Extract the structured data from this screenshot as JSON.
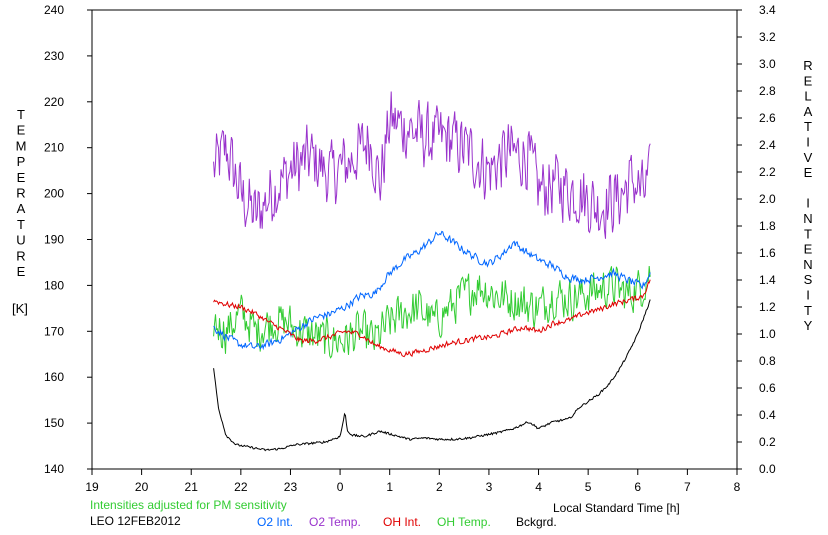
{
  "chart_data": {
    "type": "line",
    "left_axis_title_letters": [
      "T",
      "E",
      "M",
      "P",
      "E",
      "R",
      "A",
      "T",
      "U",
      "R",
      "E"
    ],
    "left_axis_unit": "[K]",
    "right_axis_title_letters": [
      "R",
      "E",
      "L",
      "A",
      "T",
      "I",
      "V",
      "E",
      "",
      "I",
      "N",
      "T",
      "E",
      "N",
      "S",
      "I",
      "T",
      "Y"
    ],
    "xlabel": "Local Standard Time [h]",
    "note": "Intensities adjusted for PM sensitivity",
    "station_label": "LEO 12FEB2012",
    "x_tick_labels": [
      "19",
      "20",
      "21",
      "22",
      "23",
      "0",
      "1",
      "2",
      "3",
      "4",
      "5",
      "6",
      "7",
      "8"
    ],
    "xlim": [
      19,
      32
    ],
    "ylim_left": [
      140,
      240
    ],
    "ylim_right": [
      0.0,
      3.4
    ],
    "y_left_ticks": [
      140,
      150,
      160,
      170,
      180,
      190,
      200,
      210,
      220,
      230,
      240
    ],
    "y_right_ticks": [
      "0.0",
      "0.2",
      "0.4",
      "0.6",
      "0.8",
      "1.0",
      "1.2",
      "1.4",
      "1.6",
      "1.8",
      "2.0",
      "2.2",
      "2.4",
      "2.6",
      "2.8",
      "3.0",
      "3.2",
      "3.4"
    ],
    "grid": false,
    "legend_placement": "bottom",
    "series": [
      {
        "name": "O2 Int.",
        "axis": "right",
        "color": "#0066ff",
        "noise": 0.035,
        "x": [
          21.45,
          21.7,
          22.0,
          22.3,
          22.6,
          22.9,
          23.2,
          23.5,
          23.8,
          24.1,
          24.4,
          24.7,
          25.0,
          25.3,
          25.6,
          25.8,
          26.0,
          26.2,
          26.5,
          26.8,
          27.0,
          27.3,
          27.5,
          27.7,
          28.0,
          28.3,
          28.6,
          28.9,
          29.2,
          29.5,
          29.8,
          30.1,
          30.25
        ],
        "y": [
          1.05,
          0.98,
          0.92,
          0.9,
          0.93,
          0.98,
          1.05,
          1.12,
          1.15,
          1.2,
          1.28,
          1.3,
          1.45,
          1.55,
          1.62,
          1.68,
          1.75,
          1.7,
          1.62,
          1.55,
          1.52,
          1.6,
          1.68,
          1.62,
          1.55,
          1.5,
          1.42,
          1.4,
          1.42,
          1.45,
          1.4,
          1.35,
          1.45
        ]
      },
      {
        "name": "O2 Temp.",
        "axis": "left",
        "color": "#9933cc",
        "noise": 8.5,
        "x": [
          21.45,
          21.7,
          22.0,
          22.3,
          22.6,
          23.0,
          23.4,
          23.8,
          24.2,
          24.6,
          24.8,
          25.0,
          25.4,
          25.8,
          26.2,
          26.6,
          27.0,
          27.4,
          27.8,
          28.0,
          28.4,
          28.8,
          29.2,
          29.6,
          29.9,
          30.1,
          30.25
        ],
        "y": [
          205,
          210,
          200,
          195,
          200,
          205,
          208,
          204,
          207,
          212,
          202,
          216,
          214,
          212,
          212,
          209,
          205,
          209,
          208,
          201,
          202,
          200,
          197,
          199,
          203,
          200,
          203
        ]
      },
      {
        "name": "OH Int.",
        "axis": "right",
        "color": "#e00000",
        "noise": 0.025,
        "x": [
          21.45,
          21.7,
          22.0,
          22.3,
          22.6,
          22.9,
          23.2,
          23.5,
          23.8,
          24.1,
          24.4,
          24.7,
          25.0,
          25.3,
          25.6,
          25.9,
          26.2,
          26.5,
          26.8,
          27.1,
          27.4,
          27.7,
          28.0,
          28.3,
          28.6,
          28.9,
          29.2,
          29.5,
          29.8,
          30.1,
          30.25
        ],
        "y": [
          1.25,
          1.22,
          1.2,
          1.15,
          1.08,
          1.02,
          0.95,
          0.95,
          0.98,
          1.02,
          1.0,
          0.92,
          0.88,
          0.85,
          0.87,
          0.9,
          0.93,
          0.95,
          0.97,
          0.98,
          1.02,
          1.05,
          1.02,
          1.08,
          1.1,
          1.15,
          1.18,
          1.22,
          1.25,
          1.28,
          1.4
        ]
      },
      {
        "name": "OH Temp.",
        "axis": "left",
        "color": "#33cc33",
        "noise": 5.5,
        "x": [
          21.45,
          21.7,
          22.0,
          22.3,
          22.6,
          22.9,
          23.2,
          23.5,
          23.8,
          24.1,
          24.4,
          24.7,
          25.0,
          25.3,
          25.6,
          25.9,
          26.2,
          26.5,
          26.8,
          27.1,
          27.4,
          27.7,
          28.0,
          28.3,
          28.6,
          28.9,
          29.2,
          29.5,
          29.8,
          30.1,
          30.25
        ],
        "y": [
          172,
          170,
          174,
          170,
          172,
          172,
          170,
          169,
          168,
          168,
          170,
          168,
          172,
          174,
          175,
          172,
          175,
          178,
          180,
          178,
          177,
          176,
          175,
          178,
          177,
          178,
          179,
          180,
          178,
          180,
          183
        ]
      },
      {
        "name": "Bckgrd.",
        "axis": "right",
        "color": "#000000",
        "noise": 0.008,
        "x": [
          21.45,
          21.55,
          21.7,
          21.9,
          22.2,
          22.5,
          22.8,
          23.1,
          23.4,
          23.7,
          24.0,
          24.1,
          24.15,
          24.25,
          24.5,
          24.8,
          25.1,
          25.4,
          25.7,
          26.0,
          26.3,
          26.6,
          26.9,
          27.2,
          27.5,
          27.8,
          28.0,
          28.3,
          28.6,
          28.7,
          28.8,
          29.0,
          29.2,
          29.4,
          29.6,
          29.8,
          30.0,
          30.1,
          30.2,
          30.25
        ],
        "y": [
          0.75,
          0.45,
          0.25,
          0.18,
          0.16,
          0.14,
          0.15,
          0.18,
          0.19,
          0.2,
          0.24,
          0.42,
          0.28,
          0.25,
          0.24,
          0.28,
          0.25,
          0.22,
          0.23,
          0.22,
          0.22,
          0.23,
          0.25,
          0.27,
          0.3,
          0.35,
          0.3,
          0.35,
          0.37,
          0.4,
          0.45,
          0.5,
          0.55,
          0.62,
          0.72,
          0.85,
          1.0,
          1.1,
          1.2,
          1.25
        ]
      }
    ]
  }
}
